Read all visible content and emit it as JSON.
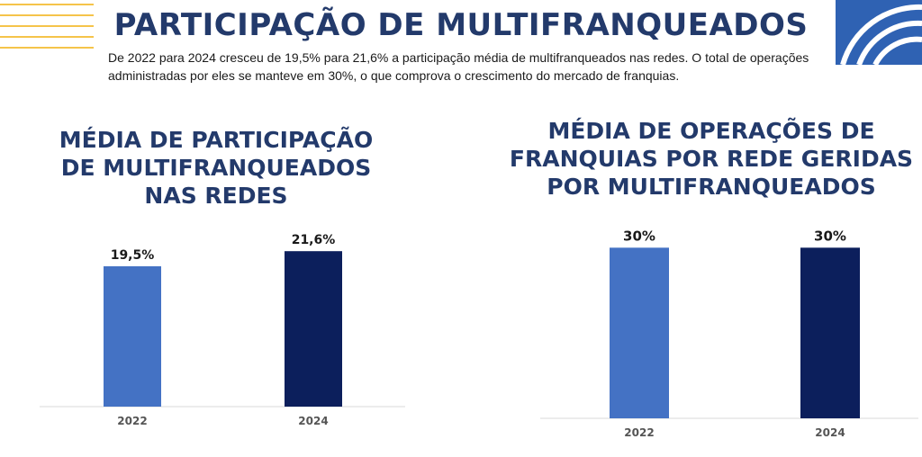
{
  "header": {
    "title": "PARTICIPAÇÃO DE MULTIFRANQUEADOS",
    "intro": "De 2022 para 2024 cresceu de 19,5% para 21,6% a participação média de multifranqueados nas redes. O total de operações administradas por eles se manteve em 30%, o que comprova o crescimento do mercado de franquias."
  },
  "colors": {
    "bar_2022": "#4472c4",
    "bar_2024": "#0c1f5c",
    "title": "#233a6b",
    "accent_lines": "#f5c44a",
    "corner_brand": "#2f62b3"
  },
  "chart_data": [
    {
      "type": "bar",
      "title": "MÉDIA DE PARTICIPAÇÃO\nDE MULTIFRANQUEADOS\nNAS REDES",
      "categories": [
        "2022",
        "2024"
      ],
      "values": [
        19.5,
        21.6
      ],
      "value_labels": [
        "19,5%",
        "21,6%"
      ],
      "ylim": [
        0,
        24
      ],
      "xlabel": "",
      "ylabel": ""
    },
    {
      "type": "bar",
      "title": "MÉDIA DE OPERAÇÕES DE\nFRANQUIAS POR REDE GERIDAS\nPOR MULTIFRANQUEADOS",
      "categories": [
        "2022",
        "2024"
      ],
      "values": [
        30,
        30
      ],
      "value_labels": [
        "30%",
        "30%"
      ],
      "ylim": [
        0,
        31
      ],
      "xlabel": "",
      "ylabel": ""
    }
  ]
}
